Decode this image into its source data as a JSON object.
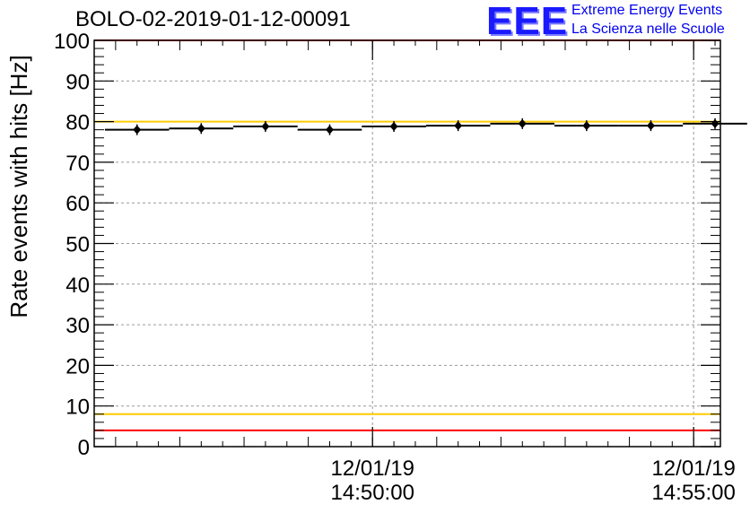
{
  "title": "BOLO-02-2019-01-12-00091",
  "logo": {
    "mark": "EEE",
    "line1": "Extreme Energy Events",
    "line2": "La Scienza nelle Scuole"
  },
  "colors": {
    "red": "#ff0000",
    "yellow": "#ffcc00",
    "data": "#000000",
    "grid": "#999999",
    "frame": "#000000"
  },
  "chart_data": {
    "type": "scatter",
    "title": "BOLO-02-2019-01-12-00091",
    "xlabel": "",
    "ylabel": "Rate events with hits [Hz]",
    "ylim": [
      0,
      100
    ],
    "yticks": [
      0,
      10,
      20,
      30,
      40,
      50,
      60,
      70,
      80,
      90,
      100
    ],
    "grid": true,
    "x_unit": "minutes",
    "x_range": [
      "12/01/19 14:45:40",
      "12/01/19 14:55:25"
    ],
    "xticks": [
      {
        "date": "12/01/19",
        "time": "14:50:00"
      },
      {
        "date": "12/01/19",
        "time": "14:55:00"
      }
    ],
    "series": [
      {
        "x": [
          "14:46:20",
          "14:47:20",
          "14:48:20",
          "14:49:20",
          "14:50:20",
          "14:51:20",
          "14:52:20",
          "14:53:20",
          "14:54:20",
          "14:55:20"
        ],
        "values": [
          78,
          78.3,
          78.8,
          78,
          78.8,
          79,
          79.5,
          79,
          79,
          79.5
        ]
      }
    ],
    "reference_lines": [
      {
        "y": 100,
        "color": "red"
      },
      {
        "y": 80,
        "color": "yellow"
      },
      {
        "y": 8,
        "color": "yellow"
      },
      {
        "y": 4,
        "color": "red"
      }
    ]
  }
}
